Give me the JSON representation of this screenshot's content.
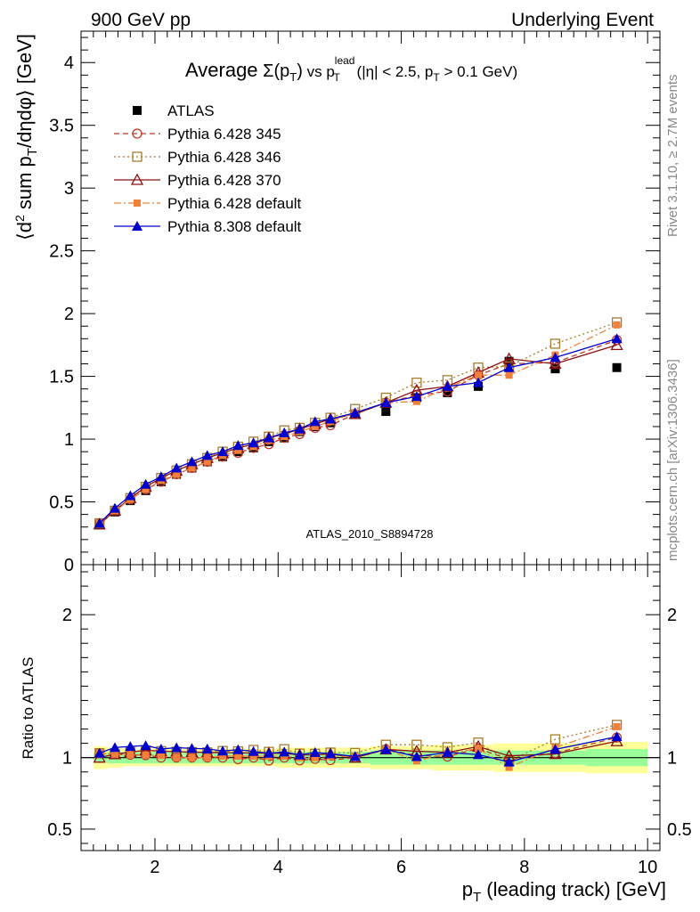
{
  "header": {
    "left": "900 GeV pp",
    "right": "Underlying Event"
  },
  "side_labels": {
    "rivet": "Rivet 3.1.10, ≥ 2.7M events",
    "mcplots": "mcplots.cern.ch [arXiv:1306.3436]"
  },
  "chart_data": [
    {
      "type": "scatter",
      "title_parts": [
        "Average",
        "Σ(p",
        "T",
        ")",
        "vs p",
        "lead",
        "T",
        "(|η| < 2.5, p",
        "T",
        "> 0.1 GeV)"
      ],
      "ylabel_parts": [
        "⟨d",
        "2",
        " sum p",
        "T",
        "/dηdφ⟩ [GeV]"
      ],
      "xlabel_parts": [
        "p",
        "T",
        " (leading track) [GeV]"
      ],
      "analysis_id": "ATLAS_2010_S8894728",
      "xlim": [
        0.8,
        10.2
      ],
      "ylim": [
        0,
        4.25
      ],
      "x_ticks": [
        2,
        4,
        6,
        8,
        10
      ],
      "x_tick_labels": [
        "2",
        "4",
        "6",
        "8",
        "10"
      ],
      "y_ticks": [
        0,
        0.5,
        1,
        1.5,
        2,
        2.5,
        3,
        3.5,
        4
      ],
      "y_tick_labels": [
        "0",
        "0.5",
        "1",
        "1.5",
        "2",
        "2.5",
        "3",
        "3.5",
        "4"
      ],
      "legend_position": "top-left",
      "x": [
        1.1,
        1.35,
        1.6,
        1.85,
        2.1,
        2.35,
        2.6,
        2.85,
        3.1,
        3.35,
        3.6,
        3.85,
        4.1,
        4.35,
        4.6,
        4.85,
        5.25,
        5.75,
        6.25,
        6.75,
        7.25,
        7.75,
        8.5,
        9.5
      ],
      "series": [
        {
          "name": "ATLAS",
          "color": "#000000",
          "marker": "square-filled",
          "line": "none",
          "values": [
            0.32,
            0.42,
            0.51,
            0.59,
            0.66,
            0.72,
            0.77,
            0.82,
            0.86,
            0.9,
            0.93,
            0.98,
            1.01,
            1.06,
            1.1,
            1.13,
            1.2,
            1.22,
            1.33,
            1.37,
            1.42,
            1.62,
            1.56,
            1.57
          ]
        },
        {
          "name": "Pythia 6.428 345",
          "color": "#c0392b",
          "marker": "circle-open",
          "line": "dashed",
          "values": [
            0.33,
            0.43,
            0.52,
            0.6,
            0.66,
            0.72,
            0.77,
            0.82,
            0.86,
            0.89,
            0.93,
            0.96,
            1.01,
            1.04,
            1.09,
            1.11,
            1.2,
            1.29,
            1.35,
            1.38,
            1.51,
            1.6,
            1.61,
            1.79
          ]
        },
        {
          "name": "Pythia 6.428 346",
          "color": "#a67c2e",
          "marker": "square-open",
          "line": "dotted",
          "values": [
            0.33,
            0.43,
            0.53,
            0.62,
            0.69,
            0.75,
            0.8,
            0.85,
            0.9,
            0.94,
            0.98,
            1.02,
            1.07,
            1.09,
            1.13,
            1.17,
            1.24,
            1.33,
            1.45,
            1.47,
            1.57,
            1.58,
            1.76,
            1.93
          ]
        },
        {
          "name": "Pythia 6.428 370",
          "color": "#8b1010",
          "marker": "triangle-open",
          "line": "solid",
          "values": [
            0.32,
            0.43,
            0.53,
            0.62,
            0.69,
            0.75,
            0.8,
            0.85,
            0.89,
            0.93,
            0.96,
            1.01,
            1.04,
            1.08,
            1.12,
            1.16,
            1.2,
            1.29,
            1.39,
            1.42,
            1.53,
            1.64,
            1.6,
            1.75
          ]
        },
        {
          "name": "Pythia 6.428 default",
          "color": "#f0803c",
          "marker": "square-filled-small",
          "line": "dashdot",
          "values": [
            0.33,
            0.43,
            0.52,
            0.6,
            0.67,
            0.72,
            0.77,
            0.82,
            0.87,
            0.91,
            0.94,
            0.99,
            1.02,
            1.06,
            1.1,
            1.14,
            1.21,
            1.29,
            1.3,
            1.41,
            1.51,
            1.51,
            1.67,
            1.91
          ]
        },
        {
          "name": "Pythia 8.308 default",
          "color": "#0000cc",
          "marker": "triangle-filled",
          "line": "solid",
          "values": [
            0.33,
            0.45,
            0.55,
            0.64,
            0.7,
            0.77,
            0.82,
            0.87,
            0.9,
            0.95,
            0.97,
            1.01,
            1.05,
            1.08,
            1.14,
            1.16,
            1.21,
            1.29,
            1.34,
            1.42,
            1.45,
            1.57,
            1.65,
            1.8
          ]
        }
      ]
    },
    {
      "type": "scatter",
      "ylabel": "Ratio to ATLAS",
      "xlim": [
        0.8,
        10.2
      ],
      "ylim": [
        0.35,
        2.35
      ],
      "y_ticks": [
        0.5,
        1,
        2
      ],
      "y_tick_labels": [
        "0.5",
        "1",
        "2"
      ],
      "x_ticks": [
        2,
        4,
        6,
        8,
        10
      ],
      "x_tick_labels": [
        "2",
        "4",
        "6",
        "8",
        "10"
      ],
      "band_edges": [
        1.0,
        1.225,
        1.475,
        1.725,
        1.975,
        2.225,
        2.475,
        2.725,
        2.975,
        3.225,
        3.475,
        3.725,
        3.975,
        4.225,
        4.475,
        4.725,
        5.0,
        5.5,
        6.0,
        6.5,
        7.0,
        7.5,
        8.0,
        9.0,
        10.0
      ],
      "band_outer_lo": [
        0.92,
        0.93,
        0.94,
        0.94,
        0.94,
        0.94,
        0.94,
        0.94,
        0.94,
        0.94,
        0.94,
        0.94,
        0.93,
        0.93,
        0.93,
        0.93,
        0.93,
        0.92,
        0.92,
        0.91,
        0.91,
        0.9,
        0.9,
        0.89
      ],
      "band_outer_hi": [
        1.08,
        1.07,
        1.06,
        1.06,
        1.06,
        1.06,
        1.06,
        1.06,
        1.06,
        1.06,
        1.06,
        1.06,
        1.07,
        1.07,
        1.07,
        1.07,
        1.07,
        1.08,
        1.08,
        1.09,
        1.09,
        1.1,
        1.1,
        1.11
      ],
      "band_inner_lo": [
        0.97,
        0.96,
        0.96,
        0.96,
        0.96,
        0.96,
        0.96,
        0.96,
        0.96,
        0.96,
        0.96,
        0.96,
        0.96,
        0.96,
        0.96,
        0.96,
        0.96,
        0.95,
        0.95,
        0.95,
        0.95,
        0.95,
        0.95,
        0.94
      ],
      "band_inner_hi": [
        1.03,
        1.04,
        1.04,
        1.04,
        1.04,
        1.04,
        1.04,
        1.04,
        1.04,
        1.04,
        1.04,
        1.04,
        1.04,
        1.04,
        1.04,
        1.04,
        1.04,
        1.05,
        1.05,
        1.05,
        1.05,
        1.05,
        1.05,
        1.06
      ],
      "band_colors": {
        "outer": "#ffff99",
        "inner": "#99ff99"
      }
    }
  ]
}
